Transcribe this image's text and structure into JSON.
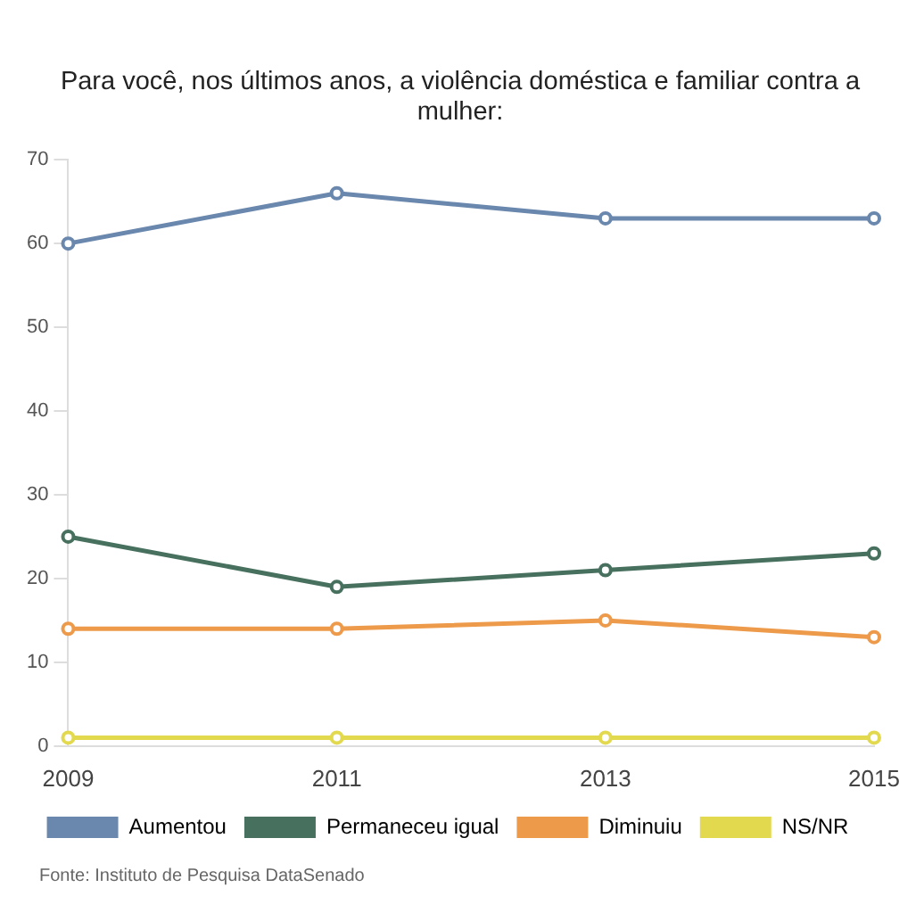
{
  "chart_data": {
    "type": "line",
    "title": "Para você, nos últimos anos, a violência doméstica e familiar contra a mulher:",
    "categories": [
      "2009",
      "2011",
      "2013",
      "2015"
    ],
    "series": [
      {
        "name": "Aumentou",
        "color": "#6a87ad",
        "values": [
          60,
          66,
          63,
          63
        ]
      },
      {
        "name": "Permaneceu igual",
        "color": "#47705f",
        "values": [
          25,
          19,
          21,
          23
        ]
      },
      {
        "name": "Diminuiu",
        "color": "#ee9a4b",
        "values": [
          14,
          14,
          15,
          13
        ]
      },
      {
        "name": "NS/NR",
        "color": "#e2d94f",
        "values": [
          1,
          1,
          1,
          1
        ]
      }
    ],
    "ylim": [
      0,
      70
    ],
    "yticks": [
      0,
      10,
      20,
      30,
      40,
      50,
      60,
      70
    ],
    "grid": false,
    "legend": "bottom",
    "marker": "circle",
    "line_style": "solid",
    "annotations": [
      "Fonte: Instituto de Pesquisa DataSenado"
    ]
  }
}
